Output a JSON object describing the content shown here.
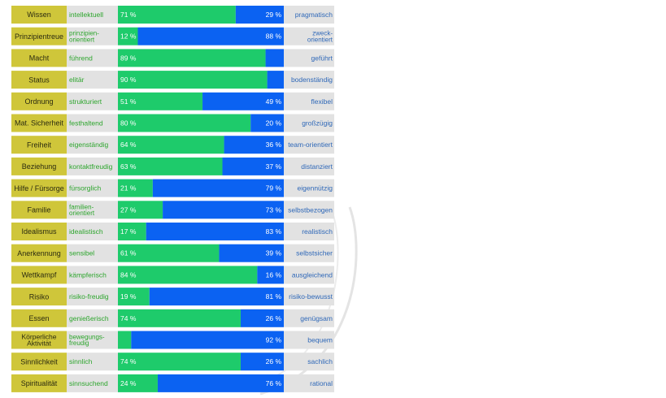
{
  "colors": {
    "category_bg": "#cfc63a",
    "left_label_bg": "#e2e2e2",
    "right_label_bg": "#e2e2e2",
    "left_bar": "#1ecb6b",
    "right_bar": "#0b62f2",
    "left_text": "#2da52d",
    "right_text": "#2f68b8",
    "bar_text": "#ffffff",
    "watermark": "#e4e4e4"
  },
  "chart_data": {
    "type": "bar",
    "orientation": "horizontal",
    "stacked": true,
    "xlim": [
      0,
      100
    ],
    "unit": "%",
    "rows": [
      {
        "category": "Wissen",
        "left_label": "intellektuell",
        "left_pct": 71,
        "right_pct": 29,
        "right_label": "pragmatisch",
        "left_pct_label": "71 %",
        "right_pct_label": "29 %"
      },
      {
        "category": "Prinzipientreue",
        "left_label": "prinzipien-\norientiert",
        "left_pct": 12,
        "right_pct": 88,
        "right_label": "zweck-\norientiert",
        "left_pct_label": "12 %",
        "right_pct_label": "88 %"
      },
      {
        "category": "Macht",
        "left_label": "führend",
        "left_pct": 89,
        "right_pct": 11,
        "right_label": "geführt",
        "left_pct_label": "89 %",
        "right_pct_label": ""
      },
      {
        "category": "Status",
        "left_label": "elitär",
        "left_pct": 90,
        "right_pct": 10,
        "right_label": "bodenständig",
        "left_pct_label": "90 %",
        "right_pct_label": ""
      },
      {
        "category": "Ordnung",
        "left_label": "strukturiert",
        "left_pct": 51,
        "right_pct": 49,
        "right_label": "flexibel",
        "left_pct_label": "51 %",
        "right_pct_label": "49 %"
      },
      {
        "category": "Mat. Sicherheit",
        "left_label": "festhaltend",
        "left_pct": 80,
        "right_pct": 20,
        "right_label": "großzügig",
        "left_pct_label": "80 %",
        "right_pct_label": "20 %"
      },
      {
        "category": "Freiheit",
        "left_label": "eigenständig",
        "left_pct": 64,
        "right_pct": 36,
        "right_label": "team-orientiert",
        "left_pct_label": "64 %",
        "right_pct_label": "36 %"
      },
      {
        "category": "Beziehung",
        "left_label": "kontaktfreudig",
        "left_pct": 63,
        "right_pct": 37,
        "right_label": "distanziert",
        "left_pct_label": "63 %",
        "right_pct_label": "37 %"
      },
      {
        "category": "Hilfe / Fürsorge",
        "left_label": "fürsorglich",
        "left_pct": 21,
        "right_pct": 79,
        "right_label": "eigennützig",
        "left_pct_label": "21 %",
        "right_pct_label": "79 %"
      },
      {
        "category": "Familie",
        "left_label": "familien-\norientiert",
        "left_pct": 27,
        "right_pct": 73,
        "right_label": "selbstbezogen",
        "left_pct_label": "27 %",
        "right_pct_label": "73 %"
      },
      {
        "category": "Idealismus",
        "left_label": "idealistisch",
        "left_pct": 17,
        "right_pct": 83,
        "right_label": "realistisch",
        "left_pct_label": "17 %",
        "right_pct_label": "83 %"
      },
      {
        "category": "Anerkennung",
        "left_label": "sensibel",
        "left_pct": 61,
        "right_pct": 39,
        "right_label": "selbstsicher",
        "left_pct_label": "61 %",
        "right_pct_label": "39 %"
      },
      {
        "category": "Wettkampf",
        "left_label": "kämpferisch",
        "left_pct": 84,
        "right_pct": 16,
        "right_label": "ausgleichend",
        "left_pct_label": "84 %",
        "right_pct_label": "16 %"
      },
      {
        "category": "Risiko",
        "left_label": "risiko-freudig",
        "left_pct": 19,
        "right_pct": 81,
        "right_label": "risiko-bewusst",
        "left_pct_label": "19 %",
        "right_pct_label": "81 %"
      },
      {
        "category": "Essen",
        "left_label": "genießerisch",
        "left_pct": 74,
        "right_pct": 26,
        "right_label": "genügsam",
        "left_pct_label": "74 %",
        "right_pct_label": "26 %"
      },
      {
        "category": "Körperliche\nAktivität",
        "left_label": "bewegungs-\nfreudig",
        "left_pct": 8,
        "right_pct": 92,
        "right_label": "bequem",
        "left_pct_label": "",
        "right_pct_label": "92 %"
      },
      {
        "category": "Sinnlichkeit",
        "left_label": "sinnlich",
        "left_pct": 74,
        "right_pct": 26,
        "right_label": "sachlich",
        "left_pct_label": "74 %",
        "right_pct_label": "26 %"
      },
      {
        "category": "Spiritualität",
        "left_label": "sinnsuchend",
        "left_pct": 24,
        "right_pct": 76,
        "right_label": "rational",
        "left_pct_label": "24 %",
        "right_pct_label": "76 %"
      }
    ]
  }
}
